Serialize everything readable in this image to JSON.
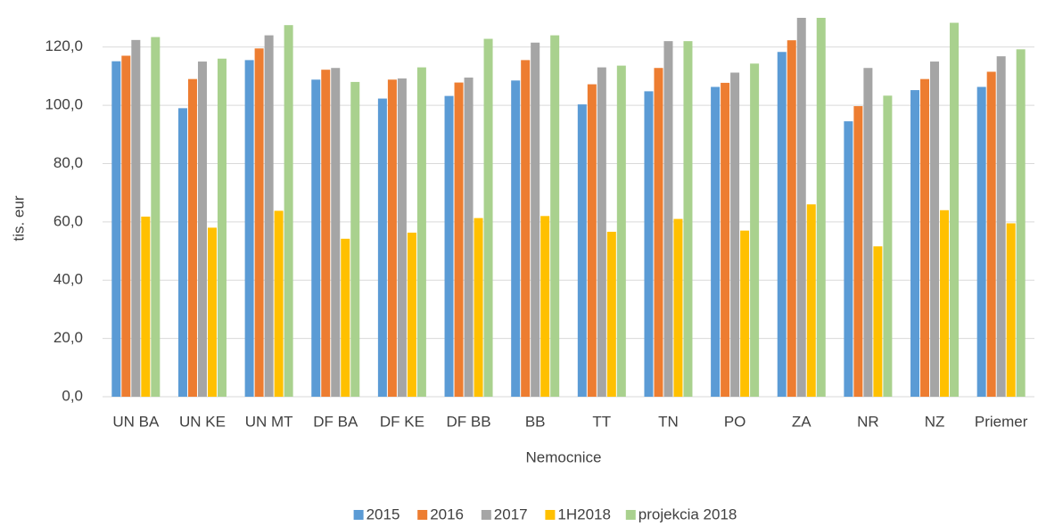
{
  "chart_data": {
    "type": "bar",
    "categories": [
      "UN BA",
      "UN KE",
      "UN MT",
      "DF BA",
      "DF KE",
      "DF BB",
      "BB",
      "TT",
      "TN",
      "PO",
      "ZA",
      "NR",
      "NZ",
      "Priemer"
    ],
    "series": [
      {
        "name": "2015",
        "color": "#5b9bd5",
        "values": [
          115.1,
          99,
          115.5,
          108.8,
          102.3,
          103.2,
          108.5,
          100.3,
          104.8,
          106.3,
          118.3,
          94.5,
          105.2,
          106.3
        ]
      },
      {
        "name": "2016",
        "color": "#ed7d31",
        "values": [
          117,
          109,
          119.5,
          112.2,
          108.8,
          107.8,
          115.5,
          107.2,
          112.8,
          107.7,
          122.3,
          99.7,
          109,
          111.5
        ]
      },
      {
        "name": "2017",
        "color": "#a5a5a5",
        "values": [
          122.4,
          115,
          124,
          112.8,
          109.2,
          109.5,
          121.5,
          113,
          122,
          111.2,
          131,
          112.8,
          115,
          116.8
        ]
      },
      {
        "name": "1H2018",
        "color": "#ffc000",
        "values": [
          61.8,
          58,
          63.8,
          54.2,
          56.3,
          61.3,
          62,
          56.6,
          61,
          57,
          66,
          51.6,
          64,
          59.5
        ]
      },
      {
        "name": "projekcia 2018",
        "color": "#a9d18e",
        "values": [
          123.4,
          116,
          127.5,
          108,
          113,
          122.8,
          124,
          113.6,
          122,
          114.3,
          132,
          103.3,
          128.3,
          119.2
        ]
      }
    ],
    "x_label": "Nemocnice",
    "y_label": "tis. eur",
    "ylim": [
      0,
      130
    ],
    "yticks": [
      {
        "value": 0,
        "label": "0,0"
      },
      {
        "value": 20,
        "label": "20,0"
      },
      {
        "value": 40,
        "label": "40,0"
      },
      {
        "value": 60,
        "label": "60,0"
      },
      {
        "value": 80,
        "label": "80,0"
      },
      {
        "value": 100,
        "label": "100,0"
      },
      {
        "value": 120,
        "label": "120,0"
      }
    ],
    "grid": true,
    "legend": "bottom"
  }
}
